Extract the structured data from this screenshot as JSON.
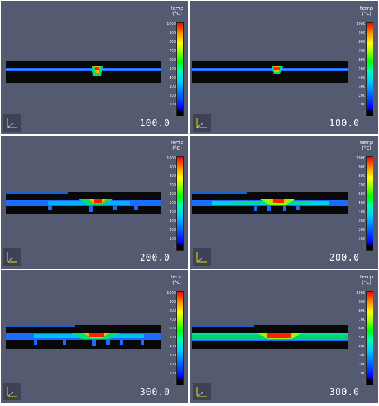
{
  "colorbar": {
    "title": "temp",
    "unit": "(°C)",
    "ticks": [
      "1000",
      "900",
      "800",
      "700",
      "600",
      "500",
      "400",
      "300",
      "200",
      "100",
      "0"
    ]
  },
  "panels": [
    {
      "time": "100.0"
    },
    {
      "time": "100.0"
    },
    {
      "time": "200.0"
    },
    {
      "time": "200.0"
    },
    {
      "time": "300.0"
    },
    {
      "time": "300.0"
    }
  ],
  "icons": {
    "axes": "xyz-axes-icon"
  }
}
